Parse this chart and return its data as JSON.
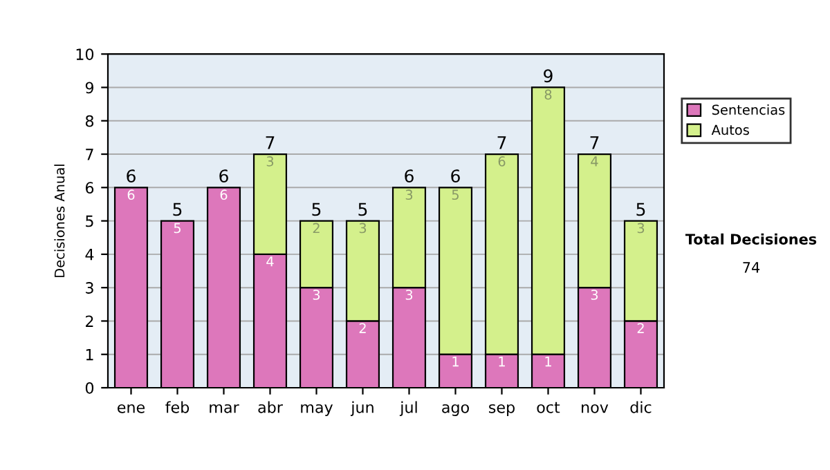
{
  "chart_data": {
    "type": "bar",
    "stacked": true,
    "ylabel": "Decisiones Anual",
    "categories": [
      "ene",
      "feb",
      "mar",
      "abr",
      "may",
      "jun",
      "jul",
      "ago",
      "sep",
      "oct",
      "nov",
      "dic"
    ],
    "series": [
      {
        "name": "Sentencias",
        "color": "#dd77bb",
        "values": [
          6,
          5,
          6,
          4,
          3,
          2,
          3,
          1,
          1,
          1,
          3,
          2
        ],
        "value_labels": [
          "6",
          "5",
          "6",
          "4",
          "3",
          "2",
          "3",
          "1",
          "1",
          "1",
          "3",
          "2"
        ]
      },
      {
        "name": "Autos",
        "color": "#d4f08c",
        "values": [
          0,
          0,
          0,
          3,
          2,
          3,
          3,
          5,
          6,
          8,
          4,
          3
        ],
        "value_labels": [
          null,
          null,
          null,
          "3",
          "2",
          "3",
          "3",
          "5",
          "6",
          "8",
          "4",
          "3"
        ]
      }
    ],
    "totals": [
      "6",
      "5",
      "6",
      "7",
      "5",
      "5",
      "6",
      "6",
      "7",
      "9",
      "7",
      "5"
    ],
    "ylim": [
      0,
      10
    ],
    "yticks": [
      0,
      1,
      2,
      3,
      4,
      5,
      6,
      7,
      8,
      9,
      10
    ],
    "grid": "y",
    "legend": "right",
    "annotations": [
      "Total Decisiones",
      "74"
    ]
  }
}
